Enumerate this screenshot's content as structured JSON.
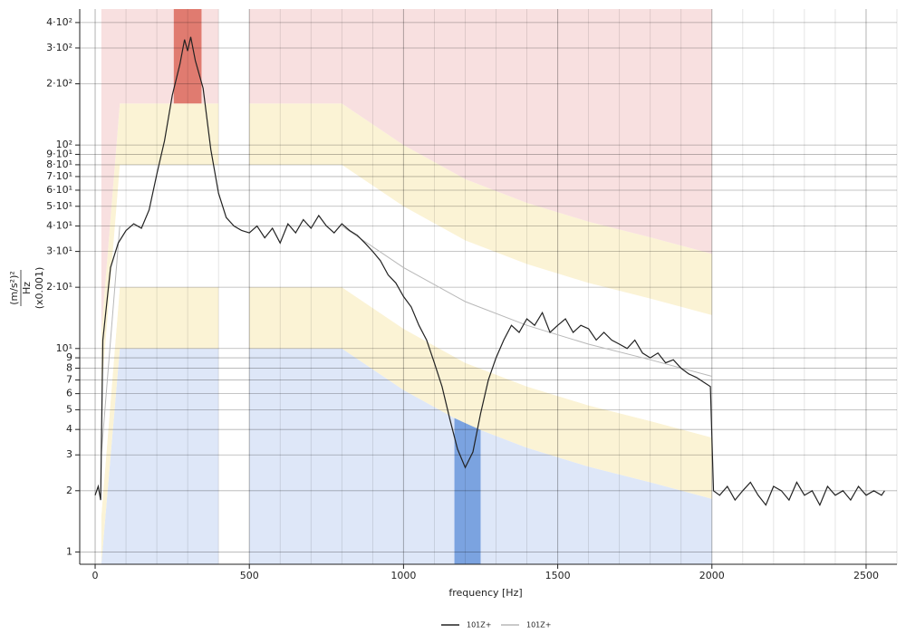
{
  "chart_data": {
    "type": "line",
    "xlabel": "frequency [Hz]",
    "ylabel": [
      "(m/s²)²",
      "Hz",
      "(x0.001)"
    ],
    "log_y": true,
    "grid": true,
    "xlim": [
      -50,
      2600
    ],
    "ylim": [
      0.87,
      466
    ],
    "xticks": [
      0,
      500,
      1000,
      1500,
      2000,
      2500
    ],
    "xminorticks": [
      100,
      200,
      300,
      400,
      600,
      700,
      800,
      900,
      1100,
      1200,
      1300,
      1400,
      1600,
      1700,
      1800,
      1900,
      2100,
      2200,
      2300,
      2400,
      2600
    ],
    "yticks": [
      1,
      2,
      3,
      4,
      5,
      6,
      7,
      8,
      9,
      {
        "value": 10,
        "label": "10¹"
      },
      {
        "value": 20,
        "label": "2·10¹"
      },
      {
        "value": 30,
        "label": "3·10¹"
      },
      {
        "value": 40,
        "label": "4·10¹"
      },
      {
        "value": 50,
        "label": "5·10¹"
      },
      {
        "value": 60,
        "label": "6·10¹"
      },
      {
        "value": 70,
        "label": "7·10¹"
      },
      {
        "value": 80,
        "label": "8·10¹"
      },
      {
        "value": 90,
        "label": "9·10¹"
      },
      {
        "value": 100,
        "label": "10²"
      },
      {
        "value": 200,
        "label": "2·10²"
      },
      {
        "value": 300,
        "label": "3·10²"
      },
      {
        "value": 400,
        "label": "4·10²"
      }
    ],
    "band_factors": [
      0.25,
      0.5,
      2,
      4
    ],
    "band_colors": [
      "#dee7f8",
      "#fbf3d5",
      "#ffffff",
      "#fbf3d5",
      "#f8e0e0"
    ],
    "band_ranges": [
      [
        20,
        400
      ],
      [
        500,
        2000
      ]
    ],
    "alarms": [
      {
        "range": [
          255,
          345
        ],
        "side": "high",
        "color": "#e07b70"
      },
      {
        "range": [
          1165,
          1250
        ],
        "side": "low",
        "color": "#7ba3e0"
      }
    ],
    "series": [
      {
        "name": "101Z+",
        "color": "#222222",
        "x": [
          0,
          10,
          18,
          25,
          50,
          75,
          100,
          125,
          150,
          175,
          200,
          225,
          250,
          275,
          290,
          300,
          310,
          325,
          350,
          375,
          400,
          425,
          450,
          475,
          500,
          525,
          550,
          575,
          600,
          625,
          650,
          675,
          700,
          725,
          750,
          775,
          800,
          825,
          850,
          875,
          900,
          925,
          950,
          975,
          1000,
          1025,
          1050,
          1075,
          1100,
          1125,
          1150,
          1175,
          1200,
          1225,
          1250,
          1275,
          1300,
          1325,
          1350,
          1375,
          1400,
          1425,
          1450,
          1475,
          1500,
          1525,
          1550,
          1575,
          1600,
          1625,
          1650,
          1675,
          1700,
          1725,
          1750,
          1775,
          1800,
          1825,
          1850,
          1875,
          1900,
          1925,
          1950,
          1975,
          1995,
          2005,
          2025,
          2050,
          2075,
          2100,
          2125,
          2150,
          2175,
          2200,
          2225,
          2250,
          2275,
          2300,
          2325,
          2350,
          2375,
          2400,
          2425,
          2450,
          2475,
          2500,
          2525,
          2550,
          2560
        ],
        "values": [
          1.9,
          2.1,
          1.8,
          11,
          25,
          33,
          38,
          41,
          39,
          48,
          72,
          105,
          175,
          250,
          330,
          290,
          340,
          260,
          190,
          95,
          58,
          44,
          40,
          38,
          37,
          40,
          35,
          39,
          33,
          41,
          37,
          43,
          39,
          45,
          40,
          37,
          41,
          38,
          36,
          33,
          30,
          27,
          23,
          21,
          18,
          16,
          13,
          11,
          8.5,
          6.5,
          4.5,
          3.2,
          2.6,
          3.1,
          4.8,
          7,
          9,
          11,
          13,
          12,
          14,
          13,
          15,
          12,
          13,
          14,
          12,
          13,
          12.5,
          11,
          12,
          11,
          10.5,
          10,
          11,
          9.5,
          9,
          9.5,
          8.5,
          8.8,
          8,
          7.5,
          7.2,
          6.8,
          6.5,
          2,
          1.9,
          2.1,
          1.8,
          2,
          2.2,
          1.9,
          1.7,
          2.1,
          2,
          1.8,
          2.2,
          1.9,
          2,
          1.7,
          2.1,
          1.9,
          2,
          1.8,
          2.1,
          1.9,
          2,
          1.9,
          2
        ]
      },
      {
        "name": "101Z+",
        "color": "#b8b8b8",
        "x": [
          20,
          80,
          400,
          500,
          800,
          1000,
          1200,
          1400,
          1600,
          1800,
          2000
        ],
        "values": [
          3,
          40,
          40,
          40,
          40,
          25,
          17,
          13,
          10.5,
          8.8,
          7.3
        ]
      }
    ]
  }
}
